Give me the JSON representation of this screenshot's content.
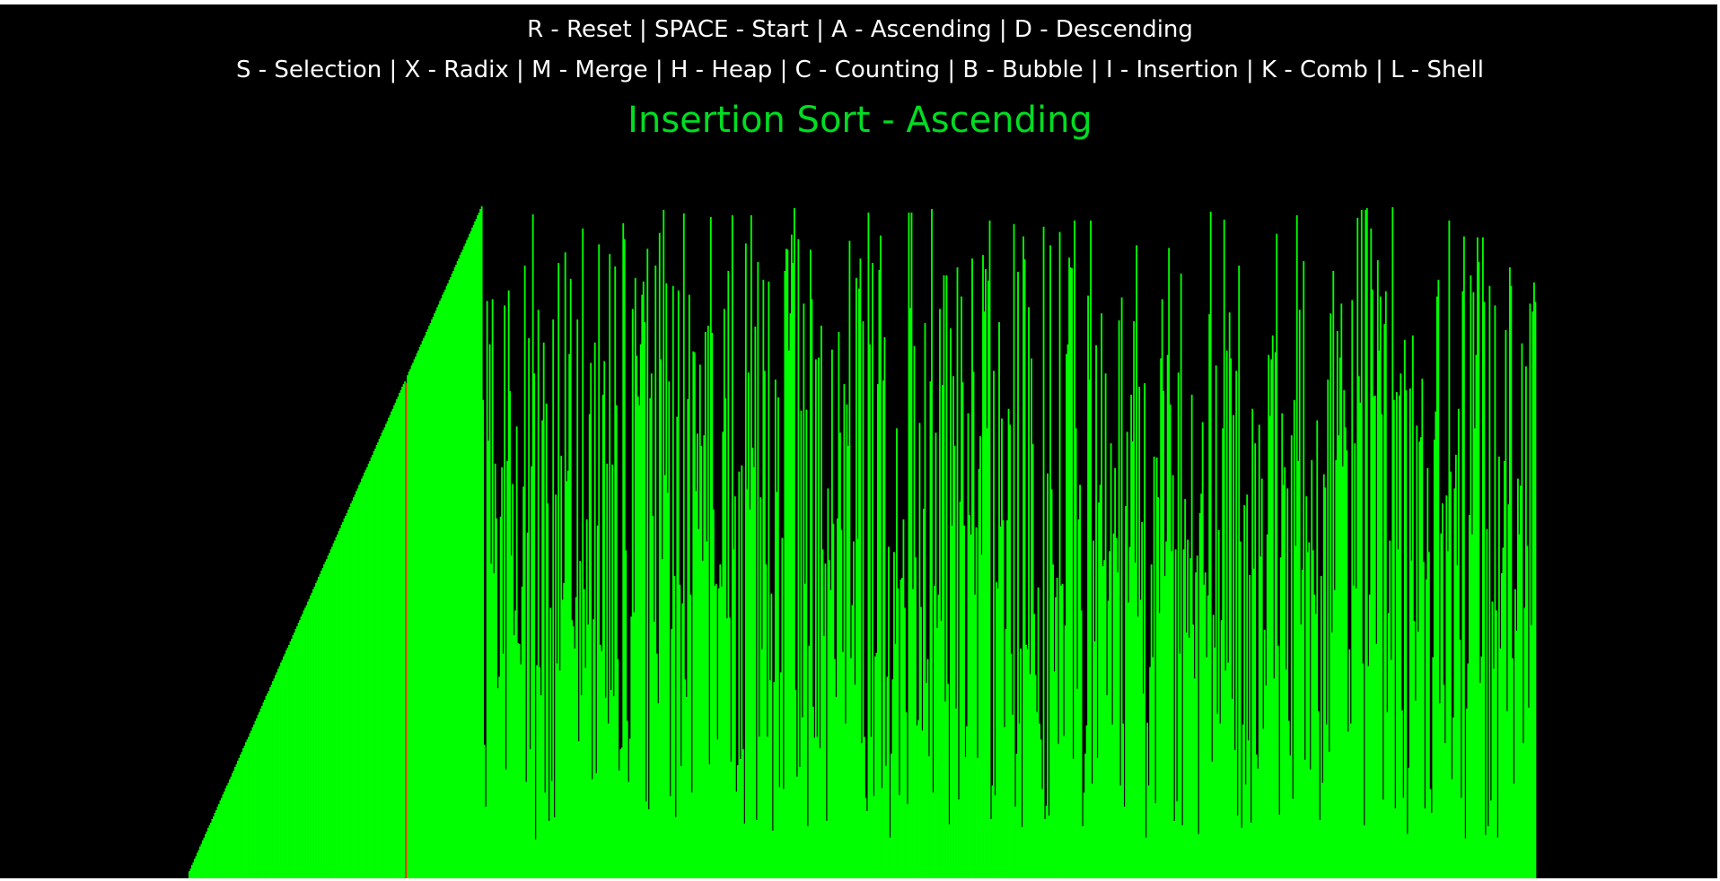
{
  "controls": {
    "line1": "R - Reset | SPACE - Start | A - Ascending | D - Descending",
    "line2": "S - Selection | X - Radix | M - Merge | H - Heap | C - Counting | B - Bubble | I - Insertion | K - Comb | L - Shell"
  },
  "status": {
    "title": "Insertion Sort - Ascending",
    "title_color": "#00dd22"
  },
  "colors": {
    "bar": "#00ff00",
    "highlight": "#ff2a00",
    "background": "#000000",
    "text": "#ffffff"
  },
  "chart_data": {
    "type": "bar",
    "bar_count": 1000,
    "value_range": [
      0,
      760
    ],
    "sorted_prefix_count": 218,
    "comparison_index": 161,
    "comparison_value": 560
  }
}
